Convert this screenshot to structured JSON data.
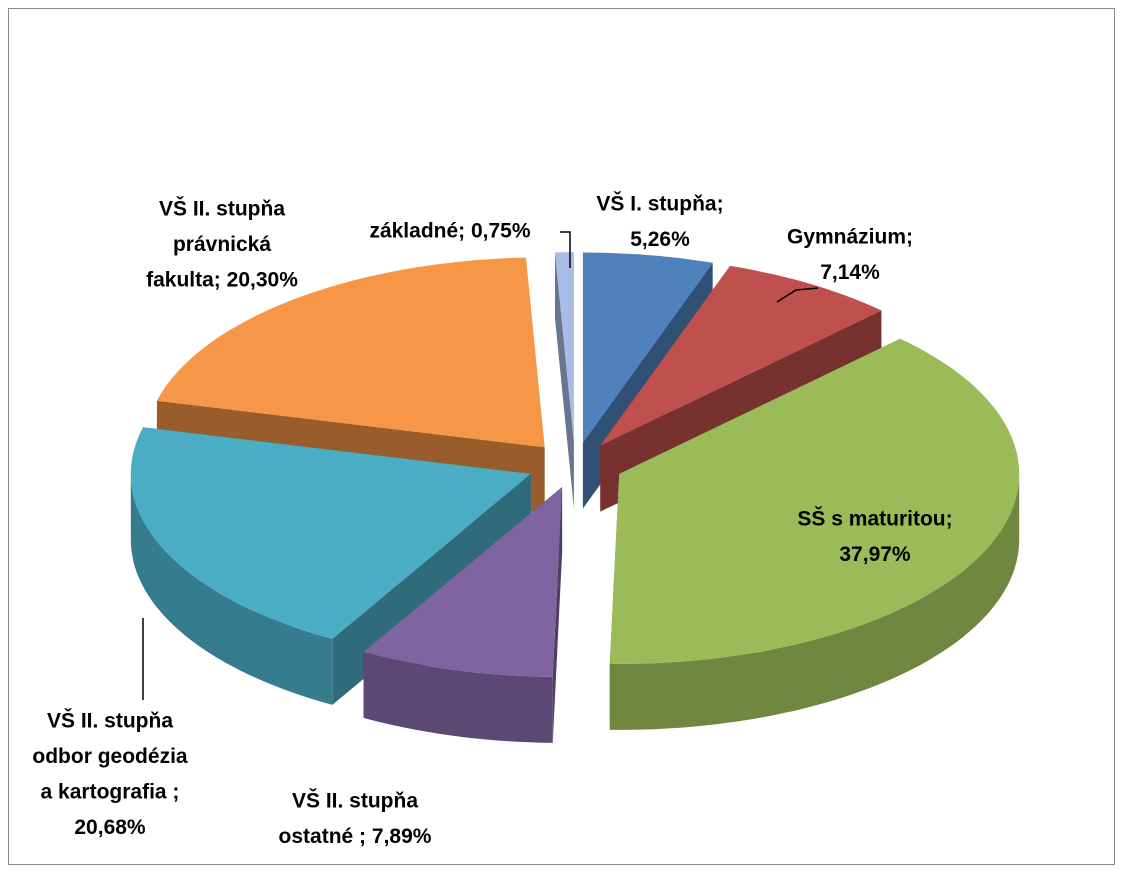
{
  "chart_data": {
    "type": "pie3d",
    "categories": [
      "VŠ I. stupňa",
      "Gymnázium",
      "SŠ s maturitou",
      "VŠ II. stupňa ostatné",
      "VŠ II. stupňa odbor geodézia a kartografia",
      "VŠ II. stupňa právnická fakulta",
      "základné"
    ],
    "values": [
      5.26,
      7.14,
      37.97,
      7.89,
      20.68,
      20.3,
      0.75
    ],
    "value_labels": [
      [
        "VŠ I. stupňa;",
        "5,26%"
      ],
      [
        "Gymnázium;",
        "7,14%"
      ],
      [
        "SŠ s maturitou;",
        "37,97%"
      ],
      [
        "VŠ II. stupňa",
        "ostatné ; 7,89%"
      ],
      [
        "VŠ II. stupňa",
        "odbor geodézia",
        "a kartografia ;",
        "20,68%"
      ],
      [
        "VŠ II. stupňa",
        "právnická",
        "fakulta; 20,30%"
      ],
      [
        "základné; 0,75%"
      ]
    ],
    "colors": [
      "#4f81bd",
      "#c0504d",
      "#9bbb59",
      "#8064a2",
      "#4bacc6",
      "#f79646",
      "#a7bde6"
    ]
  }
}
